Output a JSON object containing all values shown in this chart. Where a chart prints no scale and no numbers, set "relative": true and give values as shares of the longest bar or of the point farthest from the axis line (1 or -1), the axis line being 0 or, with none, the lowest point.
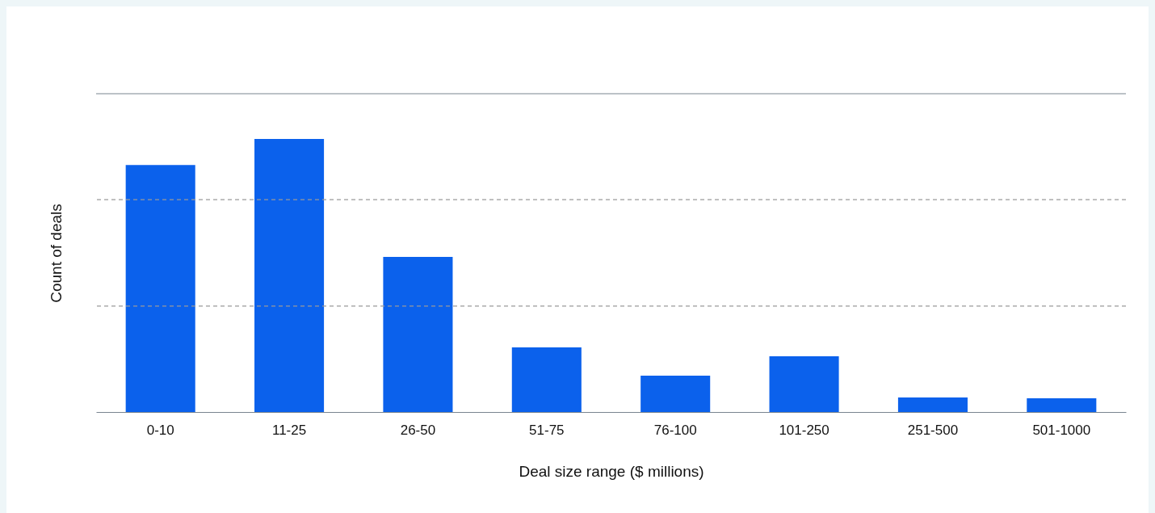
{
  "chart_data": {
    "type": "bar",
    "xlabel": "Deal size range ($ millions)",
    "ylabel": "Count of deals",
    "relative": true,
    "color": "#0b61ec",
    "ref_lines": [
      {
        "axis": "y",
        "value": 0.388,
        "line_style": "dashed",
        "color": "#999999"
      },
      {
        "axis": "y",
        "value": 0.778,
        "line_style": "dashed",
        "color": "#999999"
      },
      {
        "axis": "y",
        "value": 1.166,
        "line_style": "solid",
        "color": "#7a8590"
      }
    ],
    "categories": [
      "0-10",
      "11-25",
      "26-50",
      "51-75",
      "76-100",
      "101-250",
      "251-500",
      "501-1000"
    ],
    "values": [
      0.905,
      1,
      0.568,
      0.237,
      0.133,
      0.204,
      0.053,
      0.05
    ]
  }
}
